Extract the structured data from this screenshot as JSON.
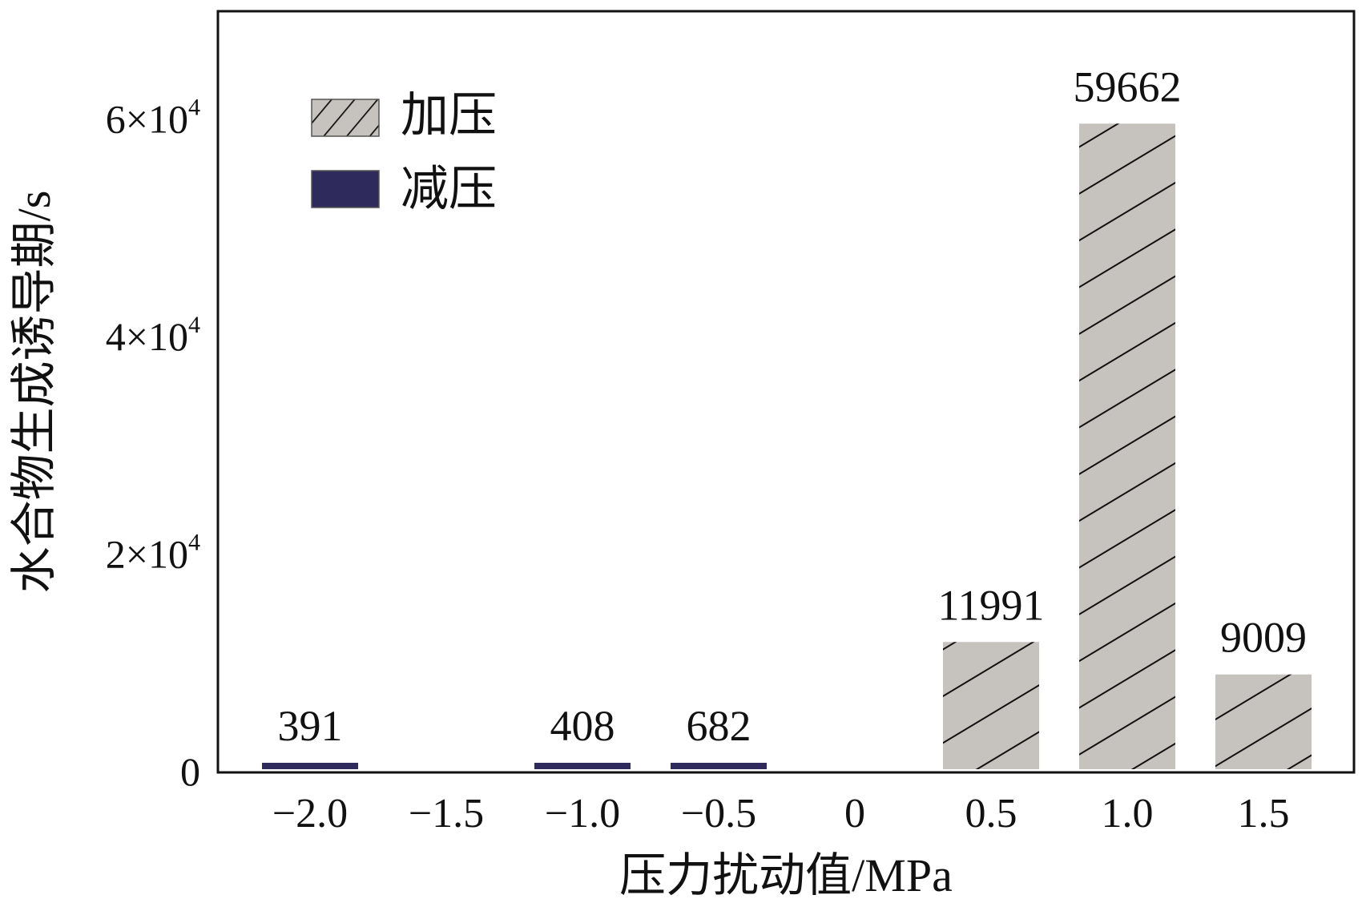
{
  "chart_data": {
    "type": "bar",
    "xlabel": "压力扰动值/MPa",
    "ylabel": "水合物生成诱导期/s",
    "categories": [
      "−2.0",
      "−1.5",
      "−1.0",
      "−0.5",
      "0",
      "0.5",
      "1.0",
      "1.5"
    ],
    "ylim": [
      0,
      70000
    ],
    "yticks": [
      {
        "value": 0,
        "label": "0",
        "base": "0",
        "exp": ""
      },
      {
        "value": 20000,
        "label": "2×10^4",
        "base": "2×10",
        "exp": "4"
      },
      {
        "value": 40000,
        "label": "4×10^4",
        "base": "4×10",
        "exp": "4"
      },
      {
        "value": 60000,
        "label": "6×10^4",
        "base": "6×10",
        "exp": "4"
      }
    ],
    "series": [
      {
        "name": "加压",
        "color": "#c6c2be",
        "pattern": "hatched",
        "points": [
          {
            "category": "0.5",
            "value": 11991,
            "label": "11991"
          },
          {
            "category": "1.0",
            "value": 59662,
            "label": "59662"
          },
          {
            "category": "1.5",
            "value": 9009,
            "label": "9009"
          }
        ]
      },
      {
        "name": "减压",
        "color": "#2e2a5c",
        "pattern": "solid",
        "points": [
          {
            "category": "−2.0",
            "value": 391,
            "label": "391"
          },
          {
            "category": "−1.0",
            "value": 408,
            "label": "408"
          },
          {
            "category": "−0.5",
            "value": 682,
            "label": "682"
          }
        ]
      }
    ],
    "legend": {
      "position": "top-left"
    },
    "grid": false
  }
}
